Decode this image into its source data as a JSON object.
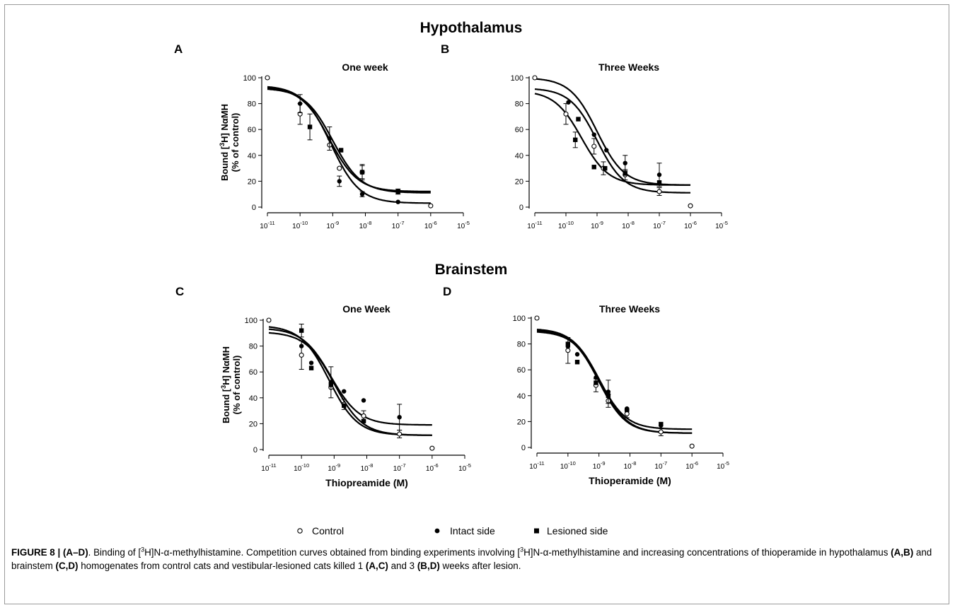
{
  "figure": {
    "section_titles": [
      "Hypothalamus",
      "Brainstem"
    ],
    "caption": {
      "label": "FIGURE 8 | (A–D)",
      "t1": ". Binding of [",
      "sup3": "3",
      "t2": "H]N-α-methylhistamine. Competition curves obtained from binding experiments involving [",
      "t3": "H]N-α-methylhistamine and increasing concentrations of thioperamide in hypothalamus ",
      "b1": "(A,B)",
      "t4": " and brainstem ",
      "b2": "(C,D)",
      "t5": " homogenates from control cats and vestibular-lesioned cats killed 1 ",
      "b3": "(A,C)",
      "t6": " and 3 ",
      "b4": "(B,D)",
      "t7": " weeks after lesion."
    }
  },
  "legend": [
    {
      "label": "Control",
      "marker": "open-circle"
    },
    {
      "label": "Intact side",
      "marker": "filled-circle"
    },
    {
      "label": "Lesioned side",
      "marker": "filled-square"
    }
  ],
  "colors": {
    "ink": "#000000",
    "frame": "#9a9a9a",
    "background": "#ffffff"
  },
  "chart_data": [
    {
      "panel": "A",
      "type": "scatter",
      "title": "One week",
      "ylabel": "Bound [3H] NαMH (% of control)",
      "xlabel": "",
      "x_scale": "log",
      "xlim": [
        1e-11,
        1e-05
      ],
      "ylim": [
        0,
        100
      ],
      "x_tick_labels": [
        "10-11",
        "10-10",
        "10-9",
        "10-8",
        "10-7",
        "10-6",
        "10-5"
      ],
      "y_ticks": [
        0,
        20,
        40,
        60,
        80,
        100
      ],
      "series": [
        {
          "name": "Control",
          "marker": "open-circle",
          "x": [
            1e-11,
            1e-10,
            8e-10,
            1.6e-09,
            8e-09,
            1e-07,
            1e-06
          ],
          "y": [
            100,
            72,
            48,
            30,
            27,
            12,
            1
          ],
          "err": [
            0,
            8,
            0,
            0,
            5,
            2,
            0
          ],
          "fit": {
            "top": 92,
            "bottom": 11,
            "log_ic50": -9.0,
            "hill": 1
          }
        },
        {
          "name": "Intact side",
          "marker": "filled-circle",
          "x": [
            1e-10,
            8e-10,
            1.6e-09,
            8e-09,
            1e-07
          ],
          "y": [
            80,
            53,
            20,
            10,
            4
          ],
          "err": [
            7,
            9,
            4,
            2,
            0
          ],
          "fit": {
            "top": 94,
            "bottom": 3,
            "log_ic50": -9.05,
            "hill": 1
          }
        },
        {
          "name": "Lesioned side",
          "marker": "filled-square",
          "x": [
            2e-10,
            1.8e-09,
            8e-09,
            1e-07
          ],
          "y": [
            62,
            44,
            27,
            12
          ],
          "err": [
            10,
            0,
            6,
            0
          ],
          "fit": {
            "top": 93,
            "bottom": 12,
            "log_ic50": -9.1,
            "hill": 1
          }
        }
      ]
    },
    {
      "panel": "B",
      "type": "scatter",
      "title": "Three Weeks",
      "ylabel": "",
      "xlabel": "",
      "x_scale": "log",
      "xlim": [
        1e-11,
        1e-05
      ],
      "ylim": [
        0,
        100
      ],
      "x_tick_labels": [
        "10-11",
        "10-10",
        "10-9",
        "10-8",
        "10-7",
        "10-6",
        "10-5"
      ],
      "y_ticks": [
        0,
        20,
        40,
        60,
        80,
        100
      ],
      "series": [
        {
          "name": "Control",
          "marker": "open-circle",
          "x": [
            1e-11,
            1e-10,
            8e-10,
            1.6e-09,
            8e-09,
            1e-07,
            1e-06
          ],
          "y": [
            100,
            72,
            47,
            30,
            25,
            12,
            1
          ],
          "err": [
            0,
            8,
            6,
            5,
            4,
            3,
            0
          ],
          "fit": {
            "top": 92,
            "bottom": 11,
            "log_ic50": -9.0,
            "hill": 1
          }
        },
        {
          "name": "Intact side",
          "marker": "filled-circle",
          "x": [
            1.2e-10,
            8e-10,
            2e-09,
            8e-09,
            1e-07
          ],
          "y": [
            81,
            56,
            44,
            34,
            25
          ],
          "err": [
            0,
            0,
            0,
            6,
            9
          ],
          "fit": {
            "top": 100,
            "bottom": 17,
            "log_ic50": -9.0,
            "hill": 1
          }
        },
        {
          "name": "Lesioned side",
          "marker": "filled-square",
          "x": [
            2e-10,
            2.5e-10,
            8e-10,
            1.8e-09,
            8e-09,
            1e-07
          ],
          "y": [
            52,
            68,
            31,
            30,
            26,
            19
          ],
          "err": [
            6,
            0,
            0,
            0,
            0,
            0
          ],
          "fit": {
            "top": 90,
            "bottom": 17,
            "log_ic50": -9.5,
            "hill": 1
          }
        }
      ]
    },
    {
      "panel": "C",
      "type": "scatter",
      "title": "One Week",
      "ylabel": "Bound [3H] NαMH (% of control)",
      "xlabel": "Thiopreamide (M)",
      "x_scale": "log",
      "xlim": [
        1e-11,
        1e-05
      ],
      "ylim": [
        0,
        100
      ],
      "x_tick_labels": [
        "10-11",
        "10-10",
        "10-9",
        "10-8",
        "10-7",
        "10-6",
        "10-5"
      ],
      "y_ticks": [
        0,
        20,
        40,
        60,
        80,
        100
      ],
      "series": [
        {
          "name": "Control",
          "marker": "open-circle",
          "x": [
            1e-11,
            1e-10,
            8e-10,
            2e-09,
            8e-09,
            1e-07,
            1e-06
          ],
          "y": [
            100,
            73,
            48,
            35,
            26,
            12,
            1
          ],
          "err": [
            0,
            11,
            0,
            4,
            4,
            3,
            0
          ],
          "fit": {
            "top": 91,
            "bottom": 11,
            "log_ic50": -9.0,
            "hill": 1
          }
        },
        {
          "name": "Intact side",
          "marker": "filled-circle",
          "x": [
            1e-10,
            2e-10,
            8e-10,
            2e-09,
            8e-09,
            1e-07
          ],
          "y": [
            80,
            67,
            52,
            45,
            38,
            25
          ],
          "err": [
            0,
            0,
            12,
            0,
            0,
            10
          ],
          "fit": {
            "top": 94,
            "bottom": 19,
            "log_ic50": -9.1,
            "hill": 1
          }
        },
        {
          "name": "Lesioned side",
          "marker": "filled-square",
          "x": [
            1e-10,
            2e-10,
            8e-10,
            2e-09,
            8e-09
          ],
          "y": [
            92,
            63,
            50,
            34,
            22
          ],
          "err": [
            5,
            0,
            0,
            0,
            0
          ],
          "fit": {
            "top": 96,
            "bottom": 11,
            "log_ic50": -9.15,
            "hill": 1
          }
        }
      ]
    },
    {
      "panel": "D",
      "type": "scatter",
      "title": "Three Weeks",
      "ylabel": "",
      "xlabel": "Thioperamide (M)",
      "x_scale": "log",
      "xlim": [
        1e-11,
        1e-05
      ],
      "ylim": [
        0,
        100
      ],
      "x_tick_labels": [
        "10-11",
        "10-10",
        "10-9",
        "10-8",
        "10-7",
        "10-6",
        "10-5"
      ],
      "y_ticks": [
        0,
        20,
        40,
        60,
        80,
        100
      ],
      "series": [
        {
          "name": "Control",
          "marker": "open-circle",
          "x": [
            1e-11,
            1e-10,
            8e-10,
            2e-09,
            8e-09,
            1e-07,
            1e-06
          ],
          "y": [
            100,
            75,
            48,
            36,
            26,
            12,
            1
          ],
          "err": [
            0,
            10,
            5,
            5,
            3,
            3,
            0
          ],
          "fit": {
            "top": 91,
            "bottom": 11,
            "log_ic50": -9.0,
            "hill": 1
          }
        },
        {
          "name": "Intact side",
          "marker": "filled-circle",
          "x": [
            1e-10,
            2e-10,
            8e-10,
            2e-09,
            8e-09,
            1e-07
          ],
          "y": [
            78,
            72,
            54,
            43,
            30,
            17
          ],
          "err": [
            0,
            0,
            0,
            9,
            0,
            0
          ],
          "fit": {
            "top": 92,
            "bottom": 14,
            "log_ic50": -9.0,
            "hill": 1
          }
        },
        {
          "name": "Lesioned side",
          "marker": "filled-square",
          "x": [
            1e-10,
            2e-10,
            8e-10,
            2e-09,
            8e-09,
            1e-07
          ],
          "y": [
            80,
            66,
            50,
            40,
            29,
            18
          ],
          "err": [
            0,
            0,
            0,
            0,
            0,
            0
          ],
          "fit": {
            "top": 90,
            "bottom": 11,
            "log_ic50": -8.95,
            "hill": 1
          }
        }
      ]
    }
  ]
}
